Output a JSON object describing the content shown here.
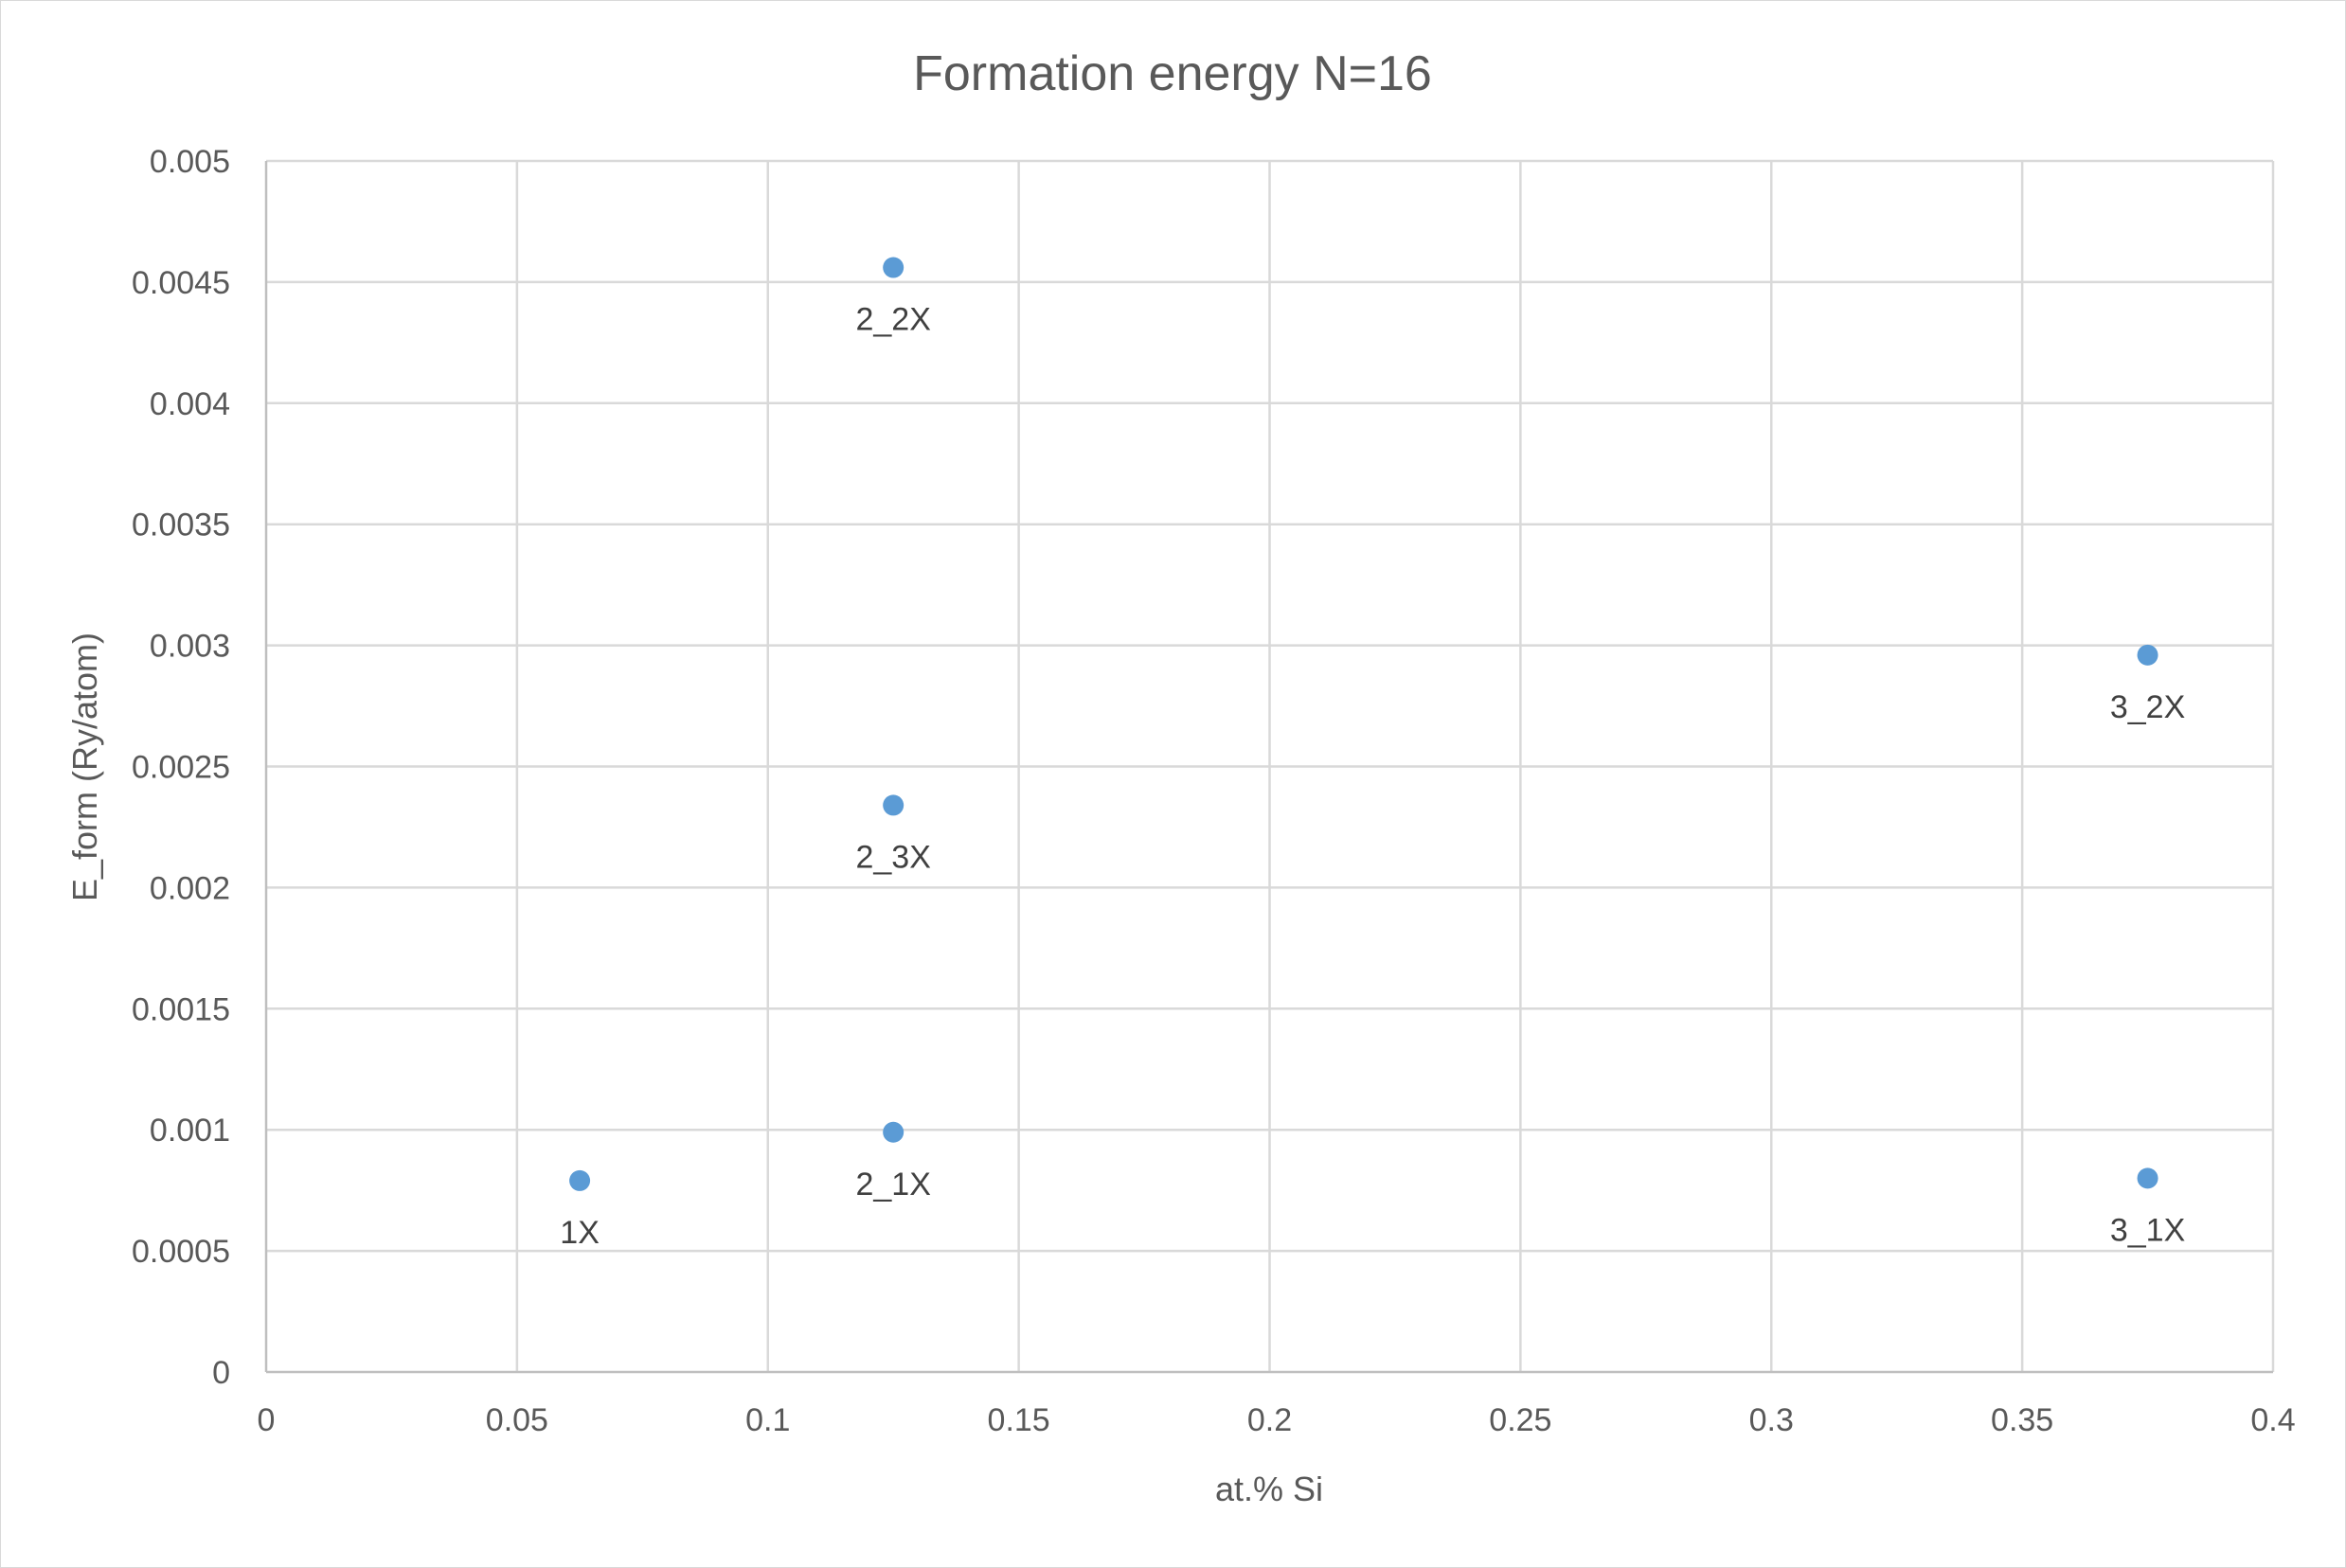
{
  "chart_data": {
    "type": "scatter",
    "title": "Formation energy N=16",
    "xlabel": "at.% Si",
    "ylabel": "E_form (Ry/atom)",
    "xlim": [
      0,
      0.4
    ],
    "ylim": [
      0,
      0.005
    ],
    "x_ticks": [
      "0",
      "0.05",
      "0.1",
      "0.15",
      "0.2",
      "0.25",
      "0.3",
      "0.35",
      "0.4"
    ],
    "y_ticks": [
      "0",
      "0.0005",
      "0.001",
      "0.0015",
      "0.002",
      "0.0025",
      "0.003",
      "0.0035",
      "0.004",
      "0.0045",
      "0.005"
    ],
    "grid": true,
    "legend": "none",
    "marker_color": "#5b9bd5",
    "points": [
      {
        "label": "1X",
        "x": 0.0625,
        "y": 0.00079
      },
      {
        "label": "2_1X",
        "x": 0.125,
        "y": 0.00099
      },
      {
        "label": "2_2X",
        "x": 0.125,
        "y": 0.00456
      },
      {
        "label": "2_3X",
        "x": 0.125,
        "y": 0.00234
      },
      {
        "label": "3_1X",
        "x": 0.375,
        "y": 0.0008
      },
      {
        "label": "3_2X",
        "x": 0.375,
        "y": 0.00296
      }
    ]
  }
}
